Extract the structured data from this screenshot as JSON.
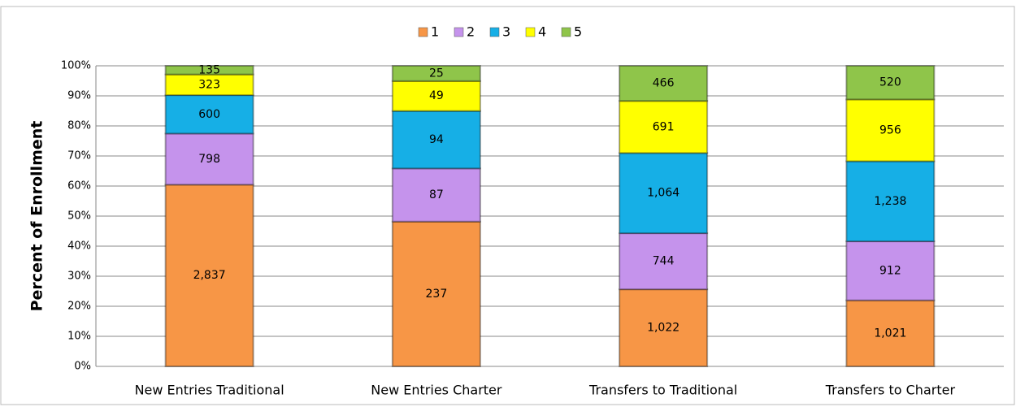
{
  "chart_data": {
    "type": "bar",
    "stacking": "percent",
    "y_axis_label": "Percent of Enrollment",
    "categories": [
      "New Entries Traditional",
      "New Entries Charter",
      "Transfers to Traditional",
      "Transfers to Charter"
    ],
    "series": [
      {
        "name": "1",
        "color": "#f79646",
        "values": [
          2837,
          237,
          1022,
          1021
        ],
        "value_labels": [
          "2,837",
          "237",
          "1,022",
          "1,021"
        ]
      },
      {
        "name": "2",
        "color": "#c593ec",
        "values": [
          798,
          87,
          744,
          912
        ],
        "value_labels": [
          "798",
          "87",
          "744",
          "912"
        ]
      },
      {
        "name": "3",
        "color": "#16afe6",
        "values": [
          600,
          94,
          1064,
          1238
        ],
        "value_labels": [
          "600",
          "94",
          "1,064",
          "1,238"
        ]
      },
      {
        "name": "4",
        "color": "#ffff00",
        "values": [
          323,
          49,
          691,
          956
        ],
        "value_labels": [
          "323",
          "49",
          "691",
          "956"
        ]
      },
      {
        "name": "5",
        "color": "#8fc54a",
        "values": [
          135,
          25,
          466,
          520
        ],
        "value_labels": [
          "135",
          "25",
          "466",
          "520"
        ]
      }
    ],
    "ylim": [
      0,
      100
    ],
    "yticks": [
      {
        "value": 0,
        "label": "0%"
      },
      {
        "value": 10,
        "label": "10%"
      },
      {
        "value": 20,
        "label": "20%"
      },
      {
        "value": 30,
        "label": "30%"
      },
      {
        "value": 40,
        "label": "40%"
      },
      {
        "value": 50,
        "label": "50%"
      },
      {
        "value": 60,
        "label": "60%"
      },
      {
        "value": 70,
        "label": "70%"
      },
      {
        "value": 80,
        "label": "80%"
      },
      {
        "value": 90,
        "label": "90%"
      },
      {
        "value": 100,
        "label": "100%"
      }
    ],
    "grid": true,
    "legend": "top"
  }
}
